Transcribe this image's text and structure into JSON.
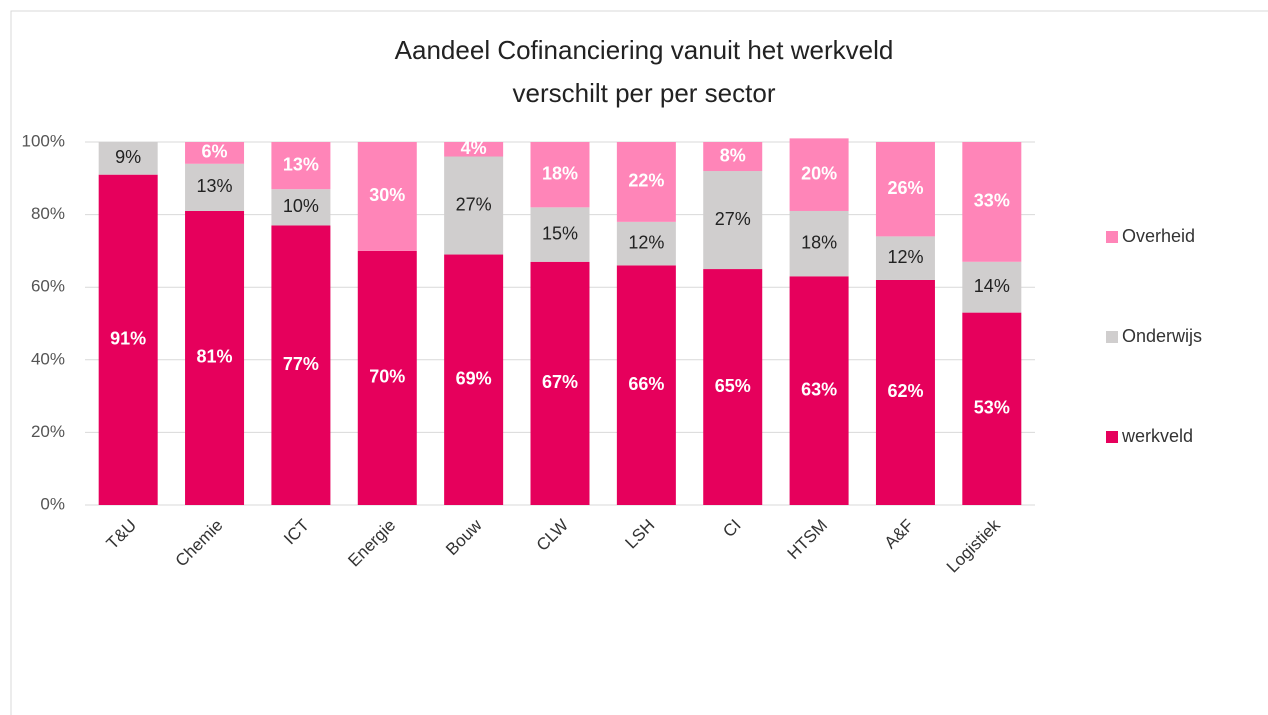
{
  "chart_data": {
    "type": "stacked_bar",
    "title": [
      "Aandeel Cofinanciering vanuit het werkveld",
      "verschilt per per sector"
    ],
    "categories": [
      "T&U",
      "Chemie",
      "ICT",
      "Energie",
      "Bouw",
      "CLW",
      "LSH",
      "CI",
      "HTSM",
      "A&F",
      "Logistiek"
    ],
    "series": [
      {
        "name": "werkveld",
        "color": "#e6005c",
        "values": [
          91,
          81,
          77,
          70,
          69,
          67,
          66,
          65,
          63,
          62,
          53
        ],
        "value_labels": [
          "91%",
          "81%",
          "77%",
          "70%",
          "69%",
          "67%",
          "66%",
          "65%",
          "63%",
          "62%",
          "53%"
        ]
      },
      {
        "name": "Onderwijs",
        "color": "#d0cece",
        "values": [
          9,
          13,
          10,
          0,
          27,
          15,
          12,
          27,
          18,
          12,
          14
        ],
        "value_labels": [
          "9%",
          "13%",
          "10%",
          null,
          "27%",
          "15%",
          "12%",
          "27%",
          "18%",
          "12%",
          "14%"
        ]
      },
      {
        "name": "Overheid",
        "color": "#ff85b8",
        "values": [
          0,
          6,
          13,
          30,
          4,
          18,
          22,
          8,
          20,
          26,
          33
        ],
        "value_labels": [
          null,
          "6%",
          "13%",
          "30%",
          "4%",
          "18%",
          "22%",
          "8%",
          "20%",
          "26%",
          "33%"
        ]
      }
    ],
    "ylim": [
      0,
      100
    ],
    "yticks": [
      {
        "value": 0,
        "label": "0%"
      },
      {
        "value": 20,
        "label": "20%"
      },
      {
        "value": 40,
        "label": "40%"
      },
      {
        "value": 60,
        "label": "60%"
      },
      {
        "value": 80,
        "label": "80%"
      },
      {
        "value": 100,
        "label": "100%"
      }
    ],
    "grid": true,
    "legend": "right"
  }
}
